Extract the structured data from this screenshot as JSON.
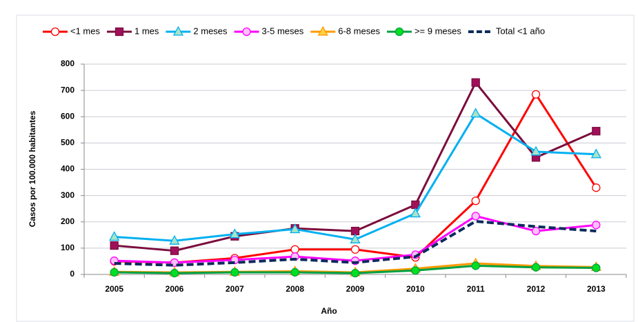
{
  "chart_data": {
    "type": "line",
    "x_label": "Año",
    "y_label": "Casos por 100.000 habitantes",
    "categories": [
      "2005",
      "2006",
      "2007",
      "2008",
      "2009",
      "2010",
      "2011",
      "2012",
      "2013"
    ],
    "ylim": [
      0,
      800
    ],
    "yticks": [
      0,
      100,
      200,
      300,
      400,
      500,
      600,
      700,
      800
    ],
    "grid": true,
    "legend": "top",
    "series": [
      {
        "name": "<1 mes",
        "color": "#ff0000",
        "marker": "circle",
        "marker_fill": "#ffffff",
        "values": [
          50,
          45,
          62,
          95,
          95,
          65,
          280,
          685,
          330
        ]
      },
      {
        "name": "1 mes",
        "color": "#7b0c3c",
        "marker": "square",
        "marker_fill": "#a0105a",
        "values": [
          110,
          90,
          145,
          175,
          165,
          265,
          730,
          445,
          545
        ]
      },
      {
        "name": "2 meses",
        "color": "#00b0f0",
        "marker": "triangle",
        "marker_fill": "#a8e4c8",
        "values": [
          143,
          128,
          153,
          172,
          133,
          232,
          612,
          467,
          457
        ]
      },
      {
        "name": "3-5 meses",
        "color": "#ff00ff",
        "marker": "circle",
        "marker_fill": "#ffc0ff",
        "values": [
          52,
          45,
          55,
          68,
          52,
          75,
          222,
          165,
          188
        ]
      },
      {
        "name": "6-8 meses",
        "color": "#ff9900",
        "marker": "triangle",
        "marker_fill": "#ffd040",
        "values": [
          10,
          8,
          10,
          12,
          8,
          22,
          42,
          32,
          28
        ]
      },
      {
        "name": ">= 9 meses",
        "color": "#00a040",
        "marker": "circle",
        "marker_fill": "#00e020",
        "values": [
          8,
          5,
          8,
          8,
          5,
          15,
          33,
          27,
          25
        ]
      },
      {
        "name": "Total <1 año",
        "color": "#0d2a5c",
        "marker": "none",
        "dash": true,
        "values": [
          42,
          35,
          45,
          58,
          45,
          68,
          202,
          182,
          165
        ]
      }
    ]
  }
}
